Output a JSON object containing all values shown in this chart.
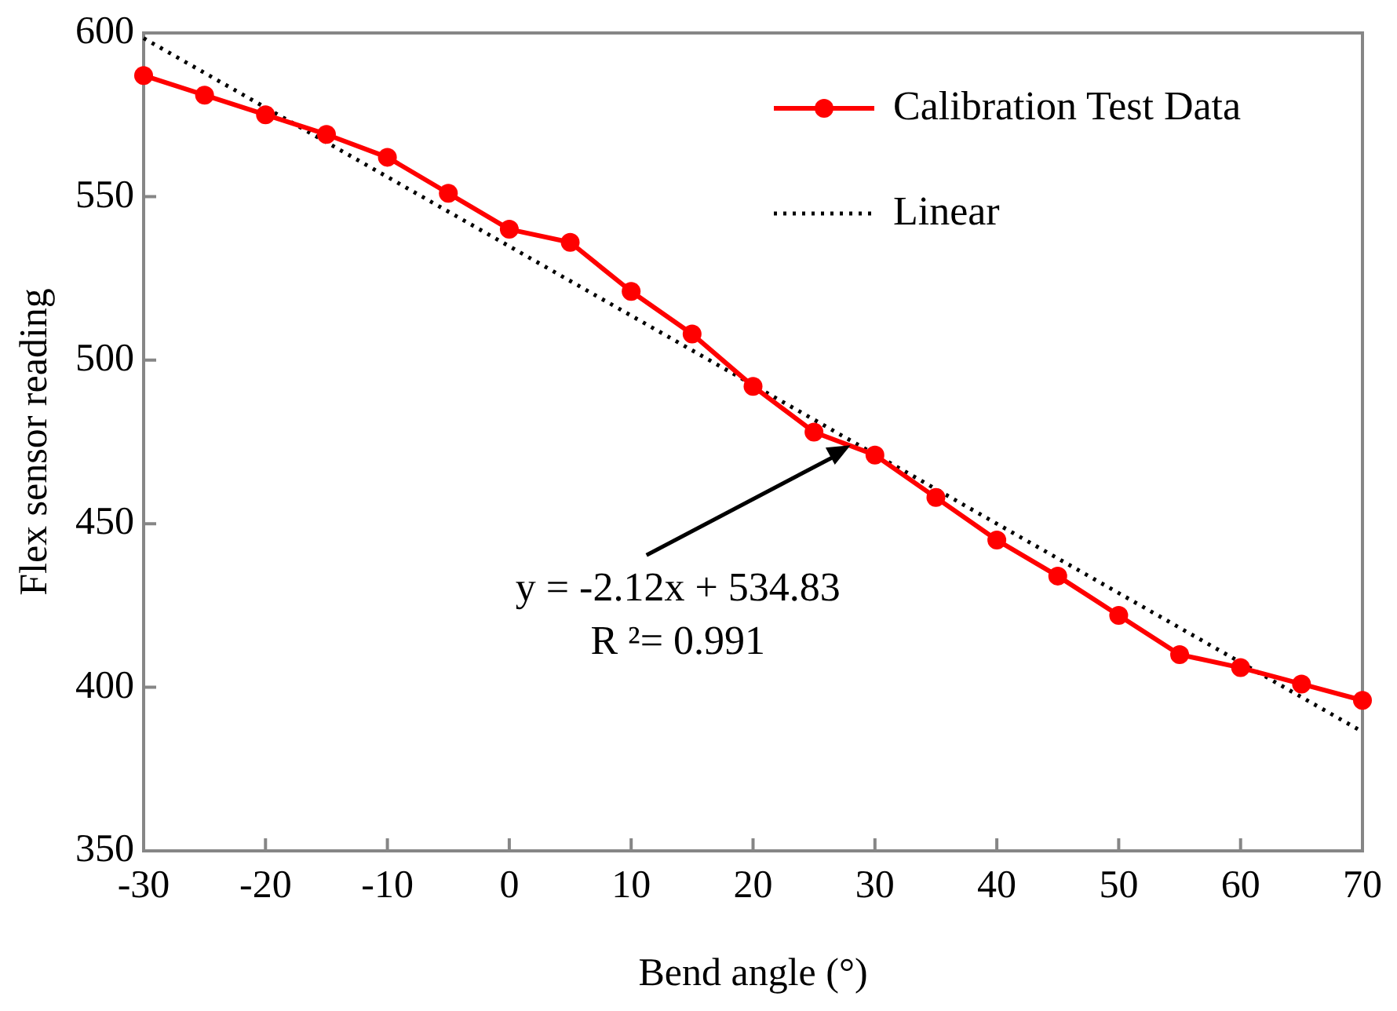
{
  "chart_data": {
    "type": "line",
    "xlabel": "Bend angle (°)",
    "ylabel": "Flex sensor reading",
    "x": [
      -30,
      -25,
      -20,
      -15,
      -10,
      -5,
      0,
      5,
      10,
      15,
      20,
      25,
      30,
      35,
      40,
      45,
      50,
      55,
      60,
      65,
      70
    ],
    "series": [
      {
        "name": "Calibration Test Data",
        "color": "#ff0000",
        "marker": "circle",
        "line_style": "solid",
        "values": [
          587,
          581,
          575,
          569,
          562,
          551,
          540,
          536,
          521,
          508,
          492,
          478,
          471,
          458,
          445,
          434,
          422,
          410,
          406,
          401,
          396
        ]
      },
      {
        "name": "Linear",
        "color": "#000000",
        "marker": "none",
        "line_style": "dotted",
        "x": [
          -30,
          70
        ],
        "values": [
          598.4,
          386.4
        ]
      }
    ],
    "xlim": [
      -30,
      70
    ],
    "xticks": [
      -30,
      -20,
      -10,
      0,
      10,
      20,
      30,
      40,
      50,
      60,
      70
    ],
    "ylim": [
      350,
      600
    ],
    "yticks": [
      350,
      400,
      450,
      500,
      550,
      600
    ],
    "grid": false,
    "legend": "top right",
    "annotations": [
      {
        "text": "y = -2.12x + 534.83",
        "x": 28,
        "y": 474
      },
      "R ²= 0.991"
    ]
  }
}
